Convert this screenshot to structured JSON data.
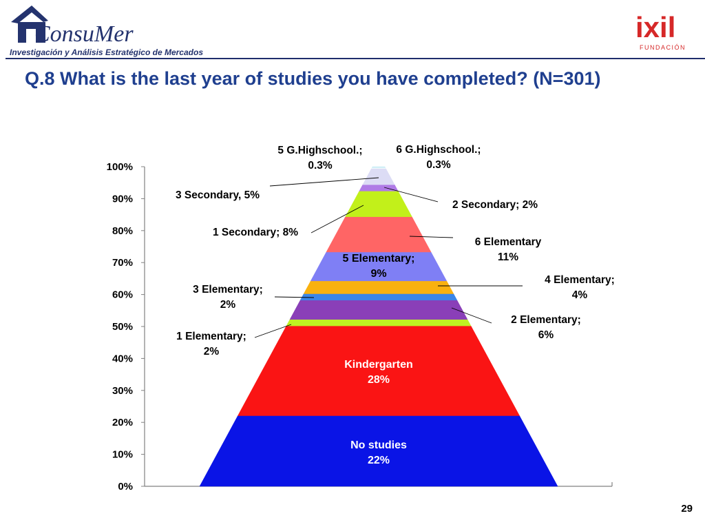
{
  "header": {
    "brand_name": "ConsuMer",
    "brand_tagline": "Investigación y Análisis Estratégico de Mercados",
    "partner_name": "ixil",
    "partner_sub": "FUNDACIÓN"
  },
  "title": "Q.8 What is the last year of studies you have completed? (N=301)",
  "page_number": "29",
  "chart_data": {
    "type": "bar",
    "subtype": "stacked-pyramid",
    "ylim": [
      0,
      100
    ],
    "yticks": [
      "0%",
      "10%",
      "20%",
      "30%",
      "40%",
      "50%",
      "60%",
      "70%",
      "80%",
      "90%",
      "100%"
    ],
    "grid": false,
    "categories": [
      "No studies",
      "Kindergarten",
      "1 Elementary",
      "2 Elementary",
      "3 Elementary",
      "4 Elementary",
      "5 Elementary",
      "6 Elementary",
      "1 Secondary",
      "2 Secondary",
      "3 Secondary",
      "5 G.Highschool.",
      "6 G.Highschool."
    ],
    "values": [
      22,
      28,
      2,
      6,
      2,
      4,
      9,
      11,
      8,
      2,
      5,
      0.3,
      0.3
    ],
    "colors": [
      "#0a14e6",
      "#fa1414",
      "#bff222",
      "#8a3fb8",
      "#3a86e8",
      "#f9b10f",
      "#7f7ff5",
      "#ff6565",
      "#c2f01a",
      "#b07be6",
      "#dcdcf5",
      "#f0f8fc",
      "#c9ecf5"
    ],
    "labels": [
      {
        "lines": [
          "No studies",
          "22%"
        ]
      },
      {
        "lines": [
          "Kindergarten",
          "28%"
        ]
      },
      {
        "lines": [
          "1 Elementary;",
          "2%"
        ]
      },
      {
        "lines": [
          "2 Elementary;",
          "6%"
        ]
      },
      {
        "lines": [
          "3 Elementary;",
          "2%"
        ]
      },
      {
        "lines": [
          "4 Elementary;",
          "4%"
        ]
      },
      {
        "lines": [
          "5 Elementary;",
          "9%"
        ]
      },
      {
        "lines": [
          "6 Elementary",
          "11%"
        ]
      },
      {
        "lines": [
          "1 Secondary; 8%"
        ]
      },
      {
        "lines": [
          "2 Secondary; 2%"
        ]
      },
      {
        "lines": [
          "3 Secondary, 5%"
        ]
      },
      {
        "lines": [
          "5 G.Highschool.;",
          "0.3%"
        ]
      },
      {
        "lines": [
          "6 G.Highschool.;",
          "0.3%"
        ]
      }
    ]
  }
}
